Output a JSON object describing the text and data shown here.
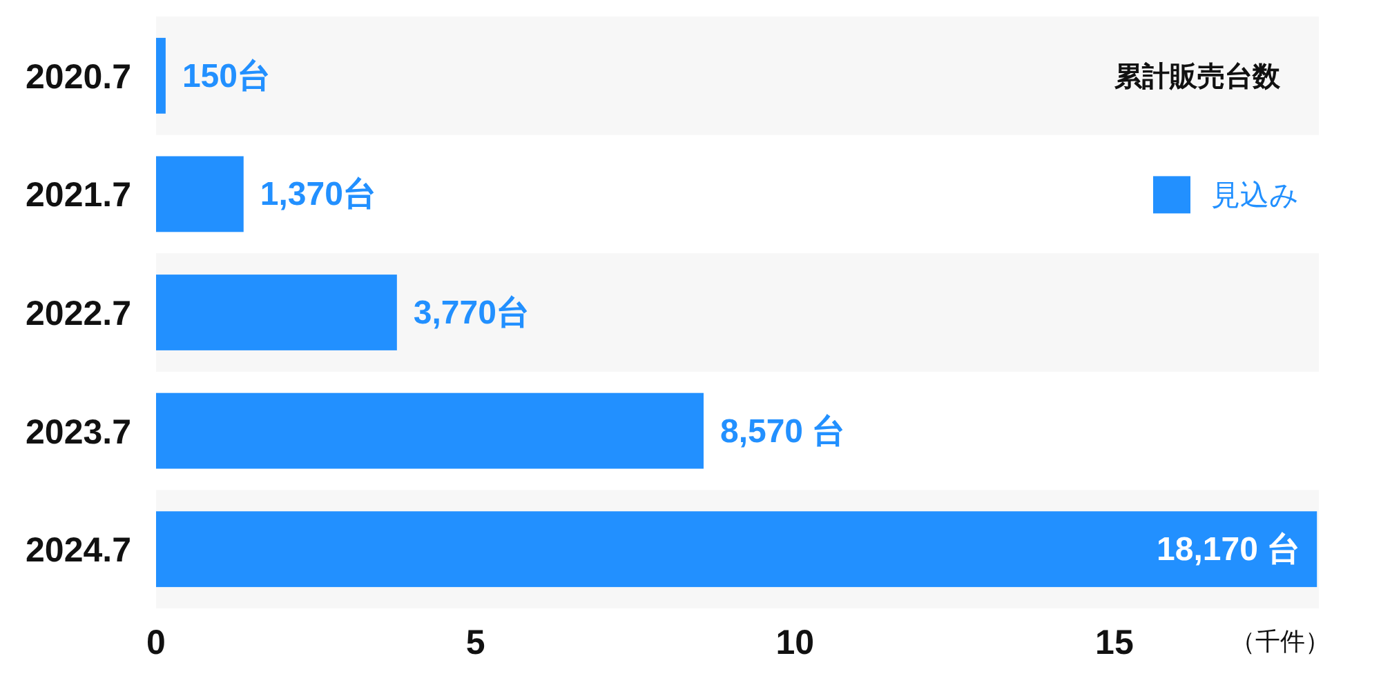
{
  "chart_data": {
    "type": "bar",
    "orientation": "horizontal",
    "title": "累計販売台数",
    "xlabel": "（千件）",
    "categories": [
      "2020.7",
      "2021.7",
      "2022.7",
      "2023.7",
      "2024.7"
    ],
    "series": [
      {
        "name": "見込み",
        "color": "#2290ff",
        "values": [
          0.15,
          1.37,
          3.77,
          8.57,
          18.17
        ]
      }
    ],
    "annotations": [
      {
        "text": "150台",
        "x": 0.15,
        "y": "2020.7"
      },
      {
        "text": "1,370台",
        "x": 1.37,
        "y": "2021.7"
      },
      {
        "text": "3,770台",
        "x": 3.77,
        "y": "2022.7"
      },
      {
        "text": "8,570 台",
        "x": 8.57,
        "y": "2023.7"
      },
      {
        "text": "18,170 台",
        "x": 18.17,
        "y": "2024.7"
      }
    ],
    "xlim": [
      0,
      18.2
    ],
    "xticks": [
      0,
      5,
      10,
      15
    ],
    "legend": "top right",
    "grid": false
  }
}
